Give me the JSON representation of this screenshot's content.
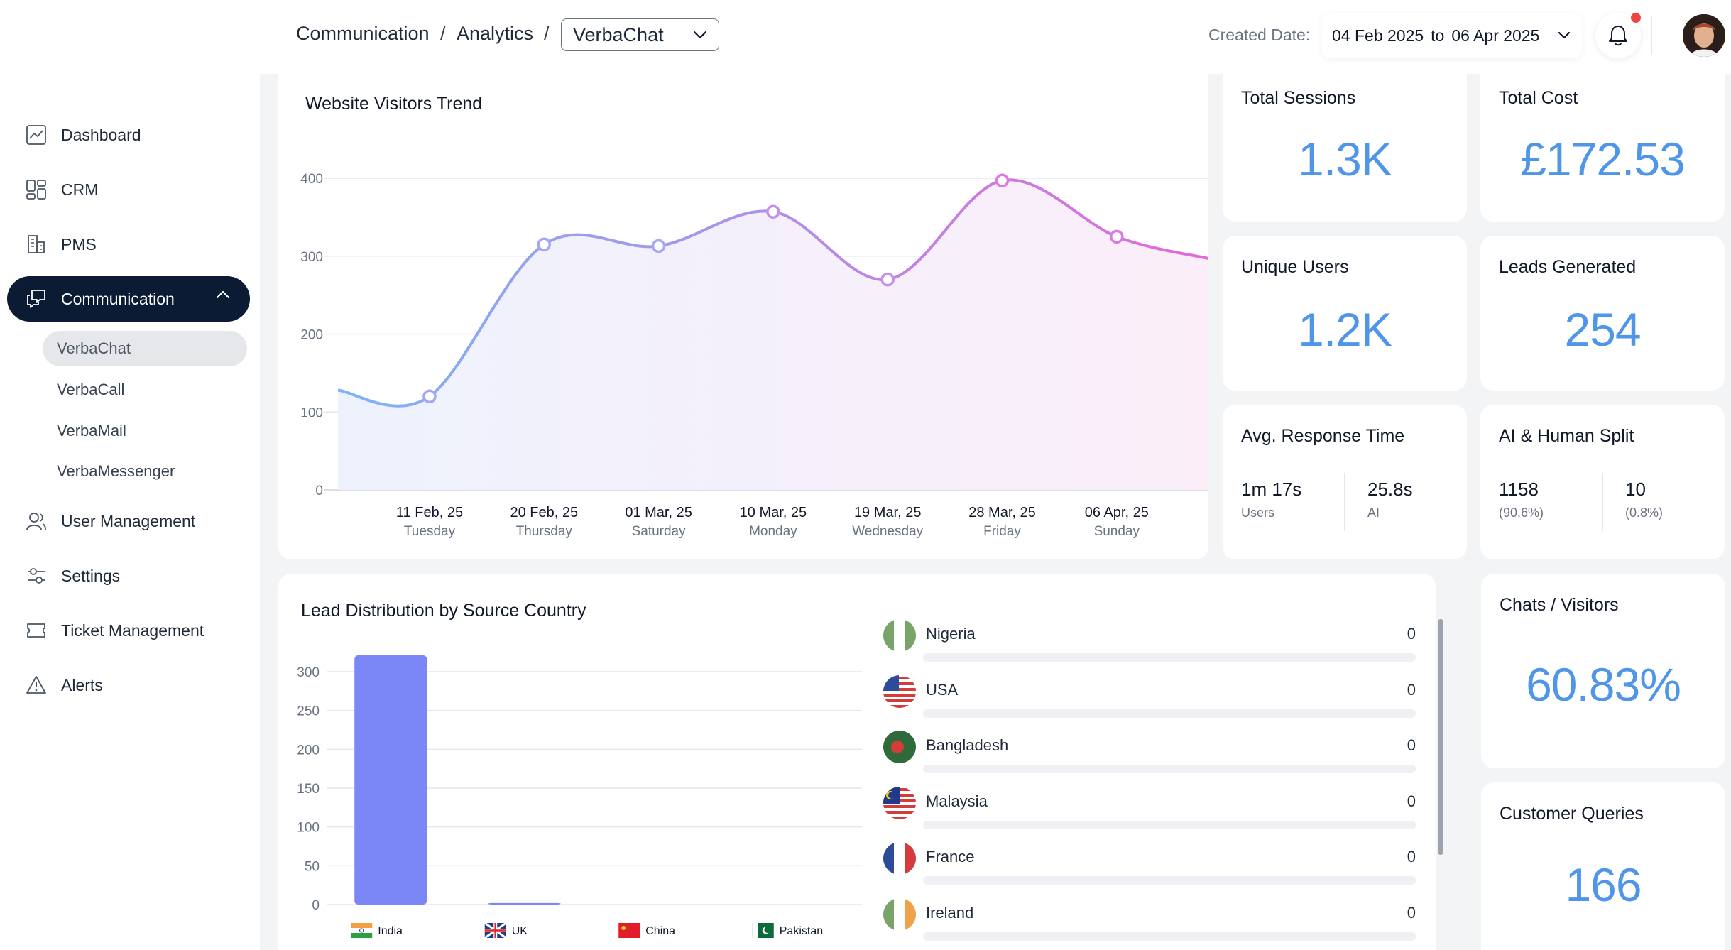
{
  "header": {
    "breadcrumbs": [
      "Communication",
      "Analytics"
    ],
    "separator": "/",
    "channel_select": "VerbaChat",
    "created_date_label": "Created Date:",
    "date_from": "04 Feb 2025",
    "date_to_word": "to",
    "date_to": "06 Apr 2025"
  },
  "sidebar": {
    "items": [
      {
        "label": "Dashboard",
        "icon": "chart-line-icon"
      },
      {
        "label": "CRM",
        "icon": "grid-layout-icon"
      },
      {
        "label": "PMS",
        "icon": "building-icon"
      },
      {
        "label": "Communication",
        "icon": "chat-bubbles-icon",
        "expanded": true
      },
      {
        "label": "User Management",
        "icon": "users-icon"
      },
      {
        "label": "Settings",
        "icon": "sliders-icon"
      },
      {
        "label": "Ticket Management",
        "icon": "ticket-icon"
      },
      {
        "label": "Alerts",
        "icon": "warning-icon"
      }
    ],
    "sub_items": [
      "VerbaChat",
      "VerbaCall",
      "VerbaMail",
      "VerbaMessenger"
    ],
    "active_sub_item": "VerbaChat"
  },
  "stats": {
    "total_sessions": {
      "label": "Total Sessions",
      "value": "1.3K"
    },
    "total_cost": {
      "label": "Total Cost",
      "value": "£172.53"
    },
    "unique_users": {
      "label": "Unique Users",
      "value": "1.2K"
    },
    "leads_generated": {
      "label": "Leads Generated",
      "value": "254"
    },
    "avg_response": {
      "label": "Avg. Response Time",
      "users_value": "1m 17s",
      "users_label": "Users",
      "ai_value": "25.8s",
      "ai_label": "AI"
    },
    "ai_human_split": {
      "label": "AI & Human Split",
      "left_value": "1158",
      "left_sub": "(90.6%)",
      "right_value": "10",
      "right_sub": "(0.8%)"
    },
    "chats_visitors": {
      "label": "Chats / Visitors",
      "value": "60.83%"
    },
    "customer_queries": {
      "label": "Customer Queries",
      "value": "166"
    }
  },
  "lead_distribution": {
    "title": "Lead Distribution by Source Country",
    "countries": [
      {
        "name": "Nigeria",
        "value": "0",
        "flag": "nigeria-flag-icon"
      },
      {
        "name": "USA",
        "value": "0",
        "flag": "usa-flag-icon"
      },
      {
        "name": "Bangladesh",
        "value": "0",
        "flag": "bangladesh-flag-icon"
      },
      {
        "name": "Malaysia",
        "value": "0",
        "flag": "malaysia-flag-icon"
      },
      {
        "name": "France",
        "value": "0",
        "flag": "france-flag-icon"
      },
      {
        "name": "Ireland",
        "value": "0",
        "flag": "ireland-flag-icon"
      }
    ]
  },
  "chart_data": [
    {
      "type": "area",
      "title": "Website Visitors Trend",
      "x": [
        "11 Feb, 25",
        "20 Feb, 25",
        "01 Mar, 25",
        "10 Mar, 25",
        "19 Mar, 25",
        "28 Mar, 25",
        "06 Apr, 25"
      ],
      "x_sublabels": [
        "Tuesday",
        "Thursday",
        "Saturday",
        "Monday",
        "Wednesday",
        "Friday",
        "Sunday"
      ],
      "values": [
        120,
        315,
        313,
        357,
        270,
        397,
        325
      ],
      "edge_start": 128,
      "edge_end": 297,
      "yticks": [
        0,
        100,
        200,
        300,
        400
      ],
      "ylim": [
        0,
        400
      ],
      "grid": true,
      "colors": {
        "start": "#7eb3f7",
        "end": "#e26ad9"
      }
    },
    {
      "type": "bar",
      "categories": [
        "India",
        "UK",
        "China",
        "Pakistan"
      ],
      "values": [
        321,
        2,
        0,
        0
      ],
      "yticks": [
        0,
        50,
        100,
        150,
        200,
        250,
        300
      ],
      "ylim": [
        0,
        300
      ],
      "grid": true,
      "color": "#7c87f7"
    }
  ]
}
